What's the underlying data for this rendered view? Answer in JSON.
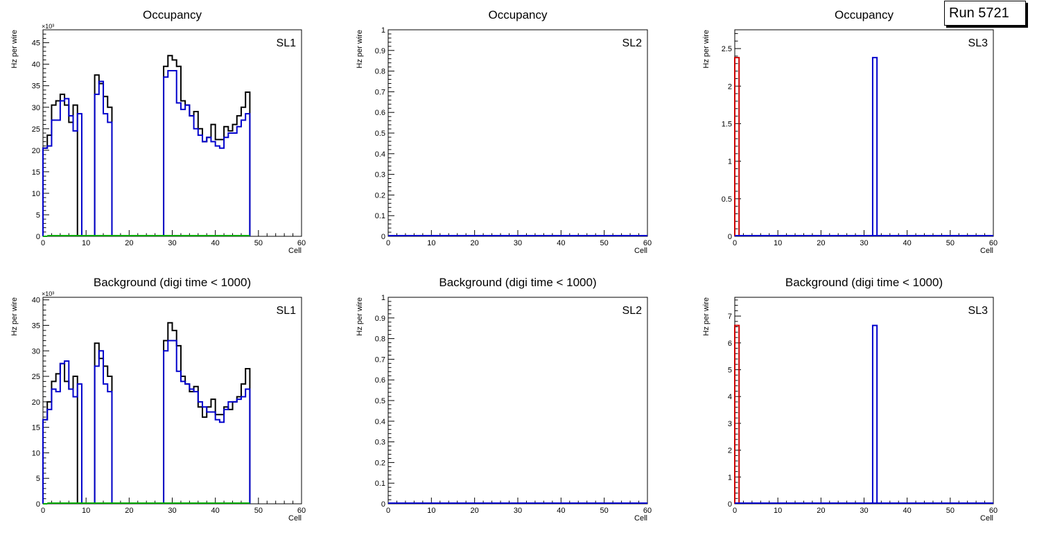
{
  "run_label": "Run 5721",
  "colors": {
    "total": "#000000",
    "sl_a": "#0000cc",
    "sl_b": "#cc0000",
    "sl_c": "#00aa00"
  },
  "chart_data": [
    {
      "type": "line",
      "title": "Occupancy",
      "panel_label": "SL1",
      "xlabel": "Cell",
      "ylabel": "Hz per wire",
      "exponent": "×10³",
      "xlim": [
        0,
        60
      ],
      "ylim": [
        0,
        48
      ],
      "xticks": [
        0,
        10,
        20,
        30,
        40,
        50,
        60
      ],
      "yticks": [
        0,
        5,
        10,
        15,
        20,
        25,
        30,
        35,
        40,
        45
      ],
      "series": [
        {
          "color": "#000000",
          "bins": [
            [
              0,
              20.5
            ],
            [
              1,
              23.5
            ],
            [
              2,
              30.5
            ],
            [
              3,
              31.5
            ],
            [
              4,
              33
            ],
            [
              5,
              30.5
            ],
            [
              6,
              26.5
            ],
            [
              7,
              30.5
            ],
            [
              12,
              37.5
            ],
            [
              13,
              35.5
            ],
            [
              14,
              32.5
            ],
            [
              15,
              30
            ],
            [
              28,
              39.5
            ],
            [
              29,
              42
            ],
            [
              30,
              41
            ],
            [
              31,
              39.5
            ],
            [
              32,
              31.5
            ],
            [
              33,
              30.5
            ],
            [
              34,
              28
            ],
            [
              35,
              29
            ],
            [
              36,
              25
            ],
            [
              37,
              22
            ],
            [
              38,
              23
            ],
            [
              39,
              26
            ],
            [
              40,
              22.5
            ],
            [
              41,
              22.5
            ],
            [
              42,
              25.5
            ],
            [
              43,
              24.5
            ],
            [
              44,
              26
            ],
            [
              45,
              28
            ],
            [
              46,
              30
            ],
            [
              47,
              33.5
            ]
          ]
        },
        {
          "color": "#0000cc",
          "bins": [
            [
              0,
              20.5
            ],
            [
              1,
              21
            ],
            [
              2,
              27
            ],
            [
              3,
              27
            ],
            [
              4,
              31.5
            ],
            [
              5,
              32
            ],
            [
              6,
              28
            ],
            [
              7,
              24.5
            ],
            [
              8,
              28.5
            ],
            [
              12,
              33
            ],
            [
              13,
              36
            ],
            [
              14,
              28.5
            ],
            [
              15,
              26.5
            ],
            [
              28,
              37
            ],
            [
              29,
              38.5
            ],
            [
              30,
              38.5
            ],
            [
              31,
              31
            ],
            [
              32,
              29.5
            ],
            [
              33,
              30.5
            ],
            [
              34,
              28
            ],
            [
              35,
              25
            ],
            [
              36,
              23.5
            ],
            [
              37,
              22
            ],
            [
              38,
              23
            ],
            [
              39,
              22
            ],
            [
              40,
              21
            ],
            [
              41,
              20.5
            ],
            [
              42,
              23
            ],
            [
              43,
              24
            ],
            [
              44,
              24
            ],
            [
              45,
              25.5
            ],
            [
              46,
              27
            ],
            [
              47,
              28.5
            ]
          ]
        },
        {
          "color": "#00aa00",
          "bins": [
            [
              0,
              0
            ]
          ],
          "baseline_range": [
            1,
            48
          ]
        }
      ]
    },
    {
      "type": "line",
      "title": "Occupancy",
      "panel_label": "SL2",
      "xlabel": "Cell",
      "ylabel": "Hz per wire",
      "exponent": "",
      "xlim": [
        0,
        60
      ],
      "ylim": [
        0,
        1
      ],
      "xticks": [
        0,
        10,
        20,
        30,
        40,
        50,
        60
      ],
      "yticks": [
        0,
        0.1,
        0.2,
        0.3,
        0.4,
        0.5,
        0.6,
        0.7,
        0.8,
        0.9,
        1
      ],
      "series": [
        {
          "color": "#0000cc",
          "bins": [],
          "baseline_range": [
            0,
            60
          ]
        }
      ]
    },
    {
      "type": "line",
      "title": "Occupancy",
      "panel_label": "SL3",
      "xlabel": "Cell",
      "ylabel": "Hz per wire",
      "exponent": "",
      "xlim": [
        0,
        60
      ],
      "ylim": [
        0,
        2.75
      ],
      "xticks": [
        0,
        10,
        20,
        30,
        40,
        50,
        60
      ],
      "yticks": [
        0,
        0.5,
        1,
        1.5,
        2,
        2.5
      ],
      "series": [
        {
          "color": "#cc0000",
          "bins": [
            [
              0,
              2.38
            ]
          ]
        },
        {
          "color": "#0000cc",
          "bins": [
            [
              32,
              2.38
            ]
          ],
          "baseline_range": [
            0,
            60
          ]
        }
      ]
    },
    {
      "type": "line",
      "title": "Background (digi time < 1000)",
      "panel_label": "SL1",
      "xlabel": "Cell",
      "ylabel": "Hz per wire",
      "exponent": "×10³",
      "xlim": [
        0,
        60
      ],
      "ylim": [
        0,
        40.5
      ],
      "xticks": [
        0,
        10,
        20,
        30,
        40,
        50,
        60
      ],
      "yticks": [
        0,
        5,
        10,
        15,
        20,
        25,
        30,
        35,
        40
      ],
      "series": [
        {
          "color": "#000000",
          "bins": [
            [
              0,
              16.5
            ],
            [
              1,
              20
            ],
            [
              2,
              24
            ],
            [
              3,
              25.5
            ],
            [
              4,
              27.5
            ],
            [
              5,
              24
            ],
            [
              6,
              22.5
            ],
            [
              7,
              25
            ],
            [
              12,
              31.5
            ],
            [
              13,
              28.5
            ],
            [
              14,
              27
            ],
            [
              15,
              25
            ],
            [
              28,
              32
            ],
            [
              29,
              35.5
            ],
            [
              30,
              34
            ],
            [
              31,
              31
            ],
            [
              32,
              25
            ],
            [
              33,
              23.5
            ],
            [
              34,
              22
            ],
            [
              35,
              23
            ],
            [
              36,
              19
            ],
            [
              37,
              17
            ],
            [
              38,
              19
            ],
            [
              39,
              20.5
            ],
            [
              40,
              17.5
            ],
            [
              41,
              17.5
            ],
            [
              42,
              19
            ],
            [
              43,
              18.5
            ],
            [
              44,
              20
            ],
            [
              45,
              21
            ],
            [
              46,
              23.5
            ],
            [
              47,
              26.5
            ]
          ]
        },
        {
          "color": "#0000cc",
          "bins": [
            [
              0,
              16.5
            ],
            [
              1,
              18.5
            ],
            [
              2,
              22.5
            ],
            [
              3,
              22
            ],
            [
              4,
              27.5
            ],
            [
              5,
              28
            ],
            [
              6,
              22.5
            ],
            [
              7,
              21
            ],
            [
              8,
              23.5
            ],
            [
              12,
              27
            ],
            [
              13,
              30
            ],
            [
              14,
              23.5
            ],
            [
              15,
              22
            ],
            [
              28,
              30
            ],
            [
              29,
              32
            ],
            [
              30,
              32
            ],
            [
              31,
              26
            ],
            [
              32,
              24
            ],
            [
              33,
              23.5
            ],
            [
              34,
              22.5
            ],
            [
              35,
              22
            ],
            [
              36,
              20
            ],
            [
              37,
              19
            ],
            [
              38,
              18
            ],
            [
              39,
              18
            ],
            [
              40,
              16.5
            ],
            [
              41,
              16
            ],
            [
              42,
              18.5
            ],
            [
              43,
              20
            ],
            [
              44,
              20
            ],
            [
              45,
              20.5
            ],
            [
              46,
              21
            ],
            [
              47,
              22.5
            ]
          ]
        },
        {
          "color": "#00aa00",
          "bins": [
            [
              0,
              0
            ]
          ],
          "baseline_range": [
            1,
            48
          ]
        }
      ]
    },
    {
      "type": "line",
      "title": "Background (digi time < 1000)",
      "panel_label": "SL2",
      "xlabel": "Cell",
      "ylabel": "Hz per wire",
      "exponent": "",
      "xlim": [
        0,
        60
      ],
      "ylim": [
        0,
        1
      ],
      "xticks": [
        0,
        10,
        20,
        30,
        40,
        50,
        60
      ],
      "yticks": [
        0,
        0.1,
        0.2,
        0.3,
        0.4,
        0.5,
        0.6,
        0.7,
        0.8,
        0.9,
        1
      ],
      "series": [
        {
          "color": "#0000cc",
          "bins": [],
          "baseline_range": [
            0,
            60
          ]
        }
      ]
    },
    {
      "type": "line",
      "title": "Background (digi time < 1000)",
      "panel_label": "SL3",
      "xlabel": "Cell",
      "ylabel": "Hz per wire",
      "exponent": "",
      "xlim": [
        0,
        60
      ],
      "ylim": [
        0,
        7.7
      ],
      "xticks": [
        0,
        10,
        20,
        30,
        40,
        50,
        60
      ],
      "yticks": [
        0,
        1,
        2,
        3,
        4,
        5,
        6,
        7
      ],
      "series": [
        {
          "color": "#cc0000",
          "bins": [
            [
              0,
              6.65
            ]
          ]
        },
        {
          "color": "#0000cc",
          "bins": [
            [
              32,
              6.65
            ]
          ],
          "baseline_range": [
            0,
            60
          ]
        }
      ]
    }
  ]
}
